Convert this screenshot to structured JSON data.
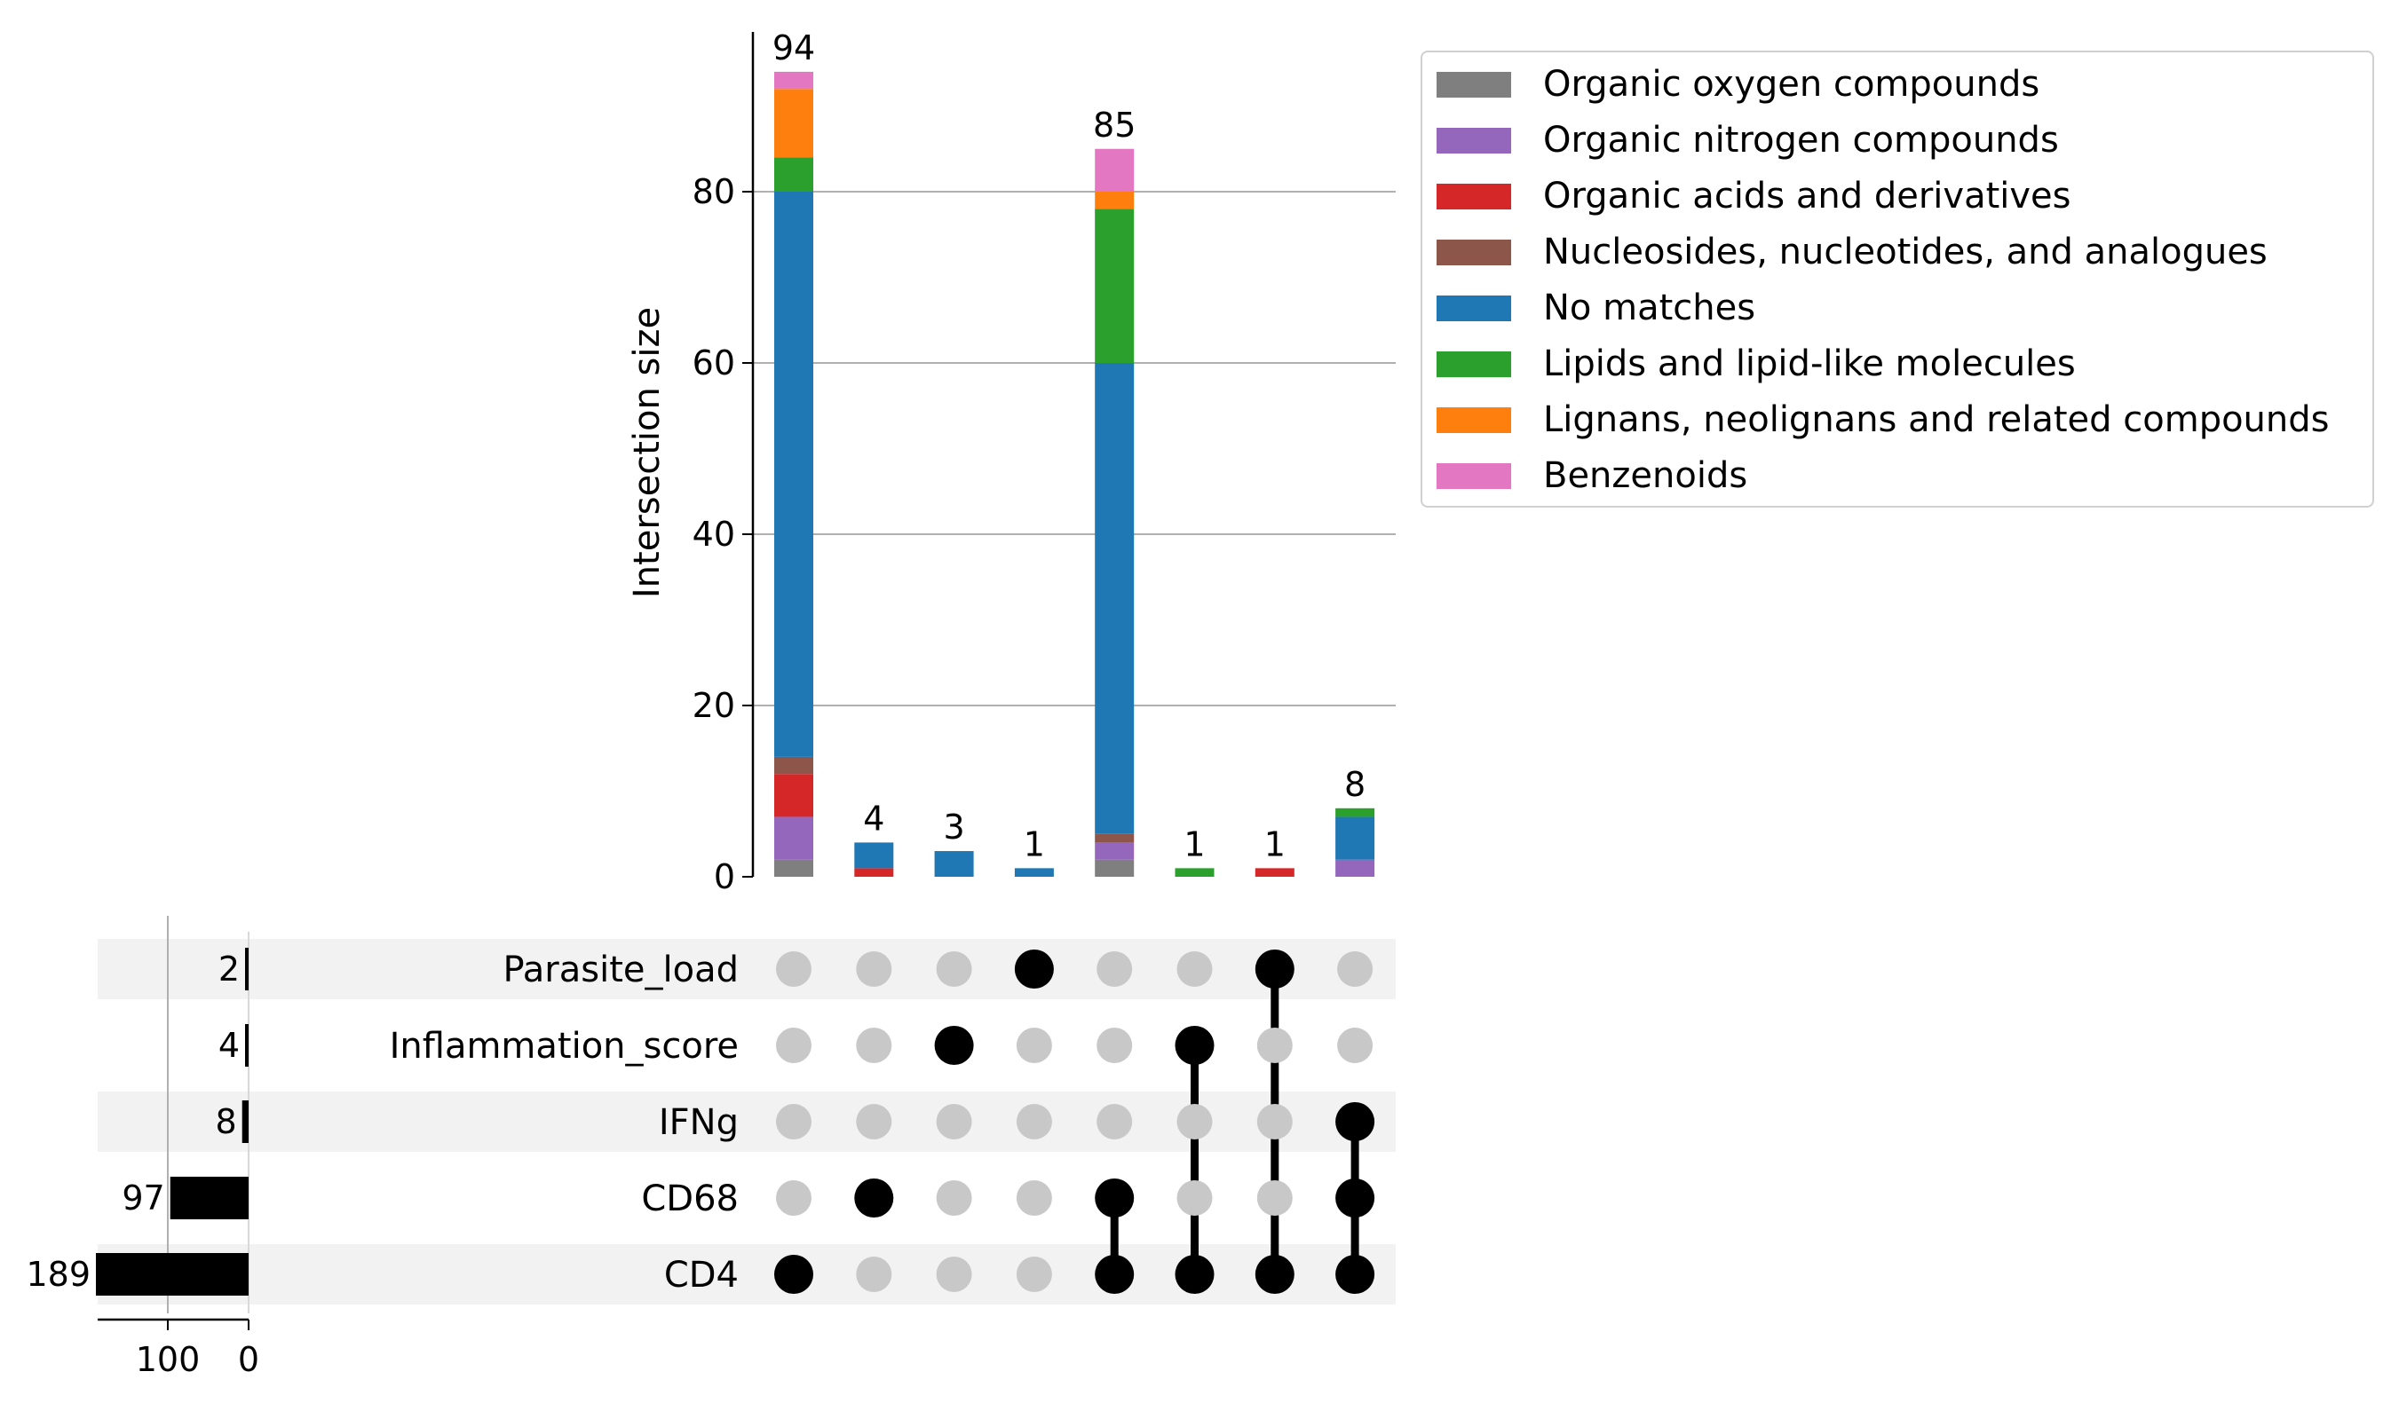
{
  "chart_data": {
    "type": "bar",
    "subtype": "upset",
    "ylabel": "Intersection size",
    "ylim": [
      0,
      98
    ],
    "yticks": [
      0,
      20,
      40,
      60,
      80
    ],
    "grid": true,
    "legend_position": "top-right",
    "sets": [
      "Parasite_load",
      "Inflammation_score",
      "IFNg",
      "CD68",
      "CD4"
    ],
    "set_sizes": [
      2,
      4,
      8,
      97,
      189
    ],
    "set_size_ticks": [
      100,
      0
    ],
    "categories": [
      "Organic oxygen compounds",
      "Organic nitrogen compounds",
      "Organic acids and derivatives",
      "Nucleosides, nucleotides, and analogues",
      "No matches",
      "Lipids and lipid-like molecules",
      "Lignans, neolignans and related compounds",
      "Benzenoids"
    ],
    "colors": [
      "#7f7f7f",
      "#9467bd",
      "#d62728",
      "#8c564b",
      "#1f77b4",
      "#2ca02c",
      "#ff7f0e",
      "#e377c2"
    ],
    "intersections": [
      {
        "members": [
          "CD4"
        ],
        "total": 94,
        "stack": [
          2,
          5,
          5,
          2,
          66,
          4,
          8,
          2
        ]
      },
      {
        "members": [
          "CD68"
        ],
        "total": 4,
        "stack": [
          0,
          0,
          1,
          0,
          3,
          0,
          0,
          0
        ]
      },
      {
        "members": [
          "Inflammation_score"
        ],
        "total": 3,
        "stack": [
          0,
          0,
          0,
          0,
          3,
          0,
          0,
          0
        ]
      },
      {
        "members": [
          "Parasite_load"
        ],
        "total": 1,
        "stack": [
          0,
          0,
          0,
          0,
          1,
          0,
          0,
          0
        ]
      },
      {
        "members": [
          "CD68",
          "CD4"
        ],
        "total": 85,
        "stack": [
          2,
          2,
          0,
          1,
          55,
          18,
          2,
          5
        ]
      },
      {
        "members": [
          "Inflammation_score",
          "CD4"
        ],
        "total": 1,
        "stack": [
          0,
          0,
          0,
          0,
          0,
          1,
          0,
          0
        ]
      },
      {
        "members": [
          "Parasite_load",
          "CD4"
        ],
        "total": 1,
        "stack": [
          0,
          0,
          1,
          0,
          0,
          0,
          0,
          0
        ]
      },
      {
        "members": [
          "IFNg",
          "CD68",
          "CD4"
        ],
        "total": 8,
        "stack": [
          0,
          2,
          0,
          0,
          5,
          1,
          0,
          0
        ]
      }
    ]
  }
}
